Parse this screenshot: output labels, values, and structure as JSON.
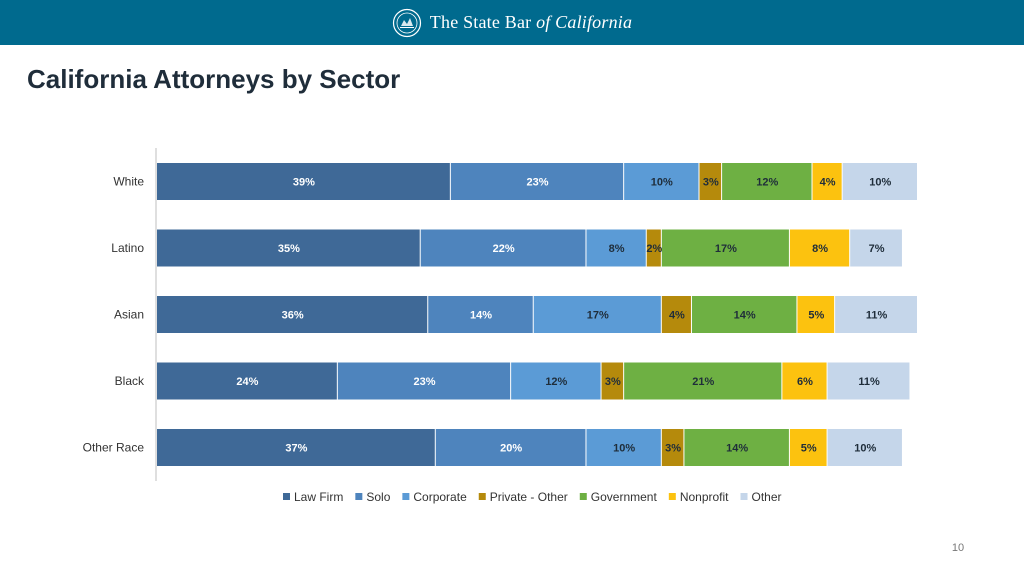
{
  "header": {
    "brand_main": "The State Bar ",
    "brand_em": "of California",
    "logo_icon": "state-bar-seal-icon",
    "background": "#006a8e"
  },
  "slide": {
    "title": "California Attorneys by Sector",
    "page_number": "10"
  },
  "chart_data": {
    "type": "bar",
    "orientation": "horizontal",
    "stacked": true,
    "categories": [
      "White",
      "Latino",
      "Asian",
      "Black",
      "Other Race"
    ],
    "series": [
      {
        "name": "Law Firm",
        "color": "#3f6997",
        "label_color": "#ffffff",
        "values": [
          39,
          35,
          36,
          24,
          37
        ]
      },
      {
        "name": "Solo",
        "color": "#4e84bd",
        "label_color": "#ffffff",
        "values": [
          23,
          22,
          14,
          23,
          20
        ]
      },
      {
        "name": "Corporate",
        "color": "#5b9bd6",
        "label_color": "#1f2d3a",
        "values": [
          10,
          8,
          17,
          12,
          10
        ]
      },
      {
        "name": "Private - Other",
        "color": "#b58a0c",
        "label_color": "#1f2d3a",
        "values": [
          3,
          2,
          4,
          3,
          3
        ]
      },
      {
        "name": "Government",
        "color": "#6eb043",
        "label_color": "#1f2d3a",
        "values": [
          12,
          17,
          14,
          21,
          14
        ]
      },
      {
        "name": "Nonprofit",
        "color": "#fcc20f",
        "label_color": "#1f2d3a",
        "values": [
          4,
          8,
          5,
          6,
          5
        ]
      },
      {
        "name": "Other",
        "color": "#c5d6ea",
        "label_color": "#1f2d3a",
        "values": [
          10,
          7,
          11,
          11,
          10
        ]
      }
    ],
    "value_suffix": "%",
    "xlim": [
      0,
      101
    ],
    "legend_position": "bottom",
    "grid": false,
    "title": "",
    "xlabel": "",
    "ylabel": ""
  }
}
